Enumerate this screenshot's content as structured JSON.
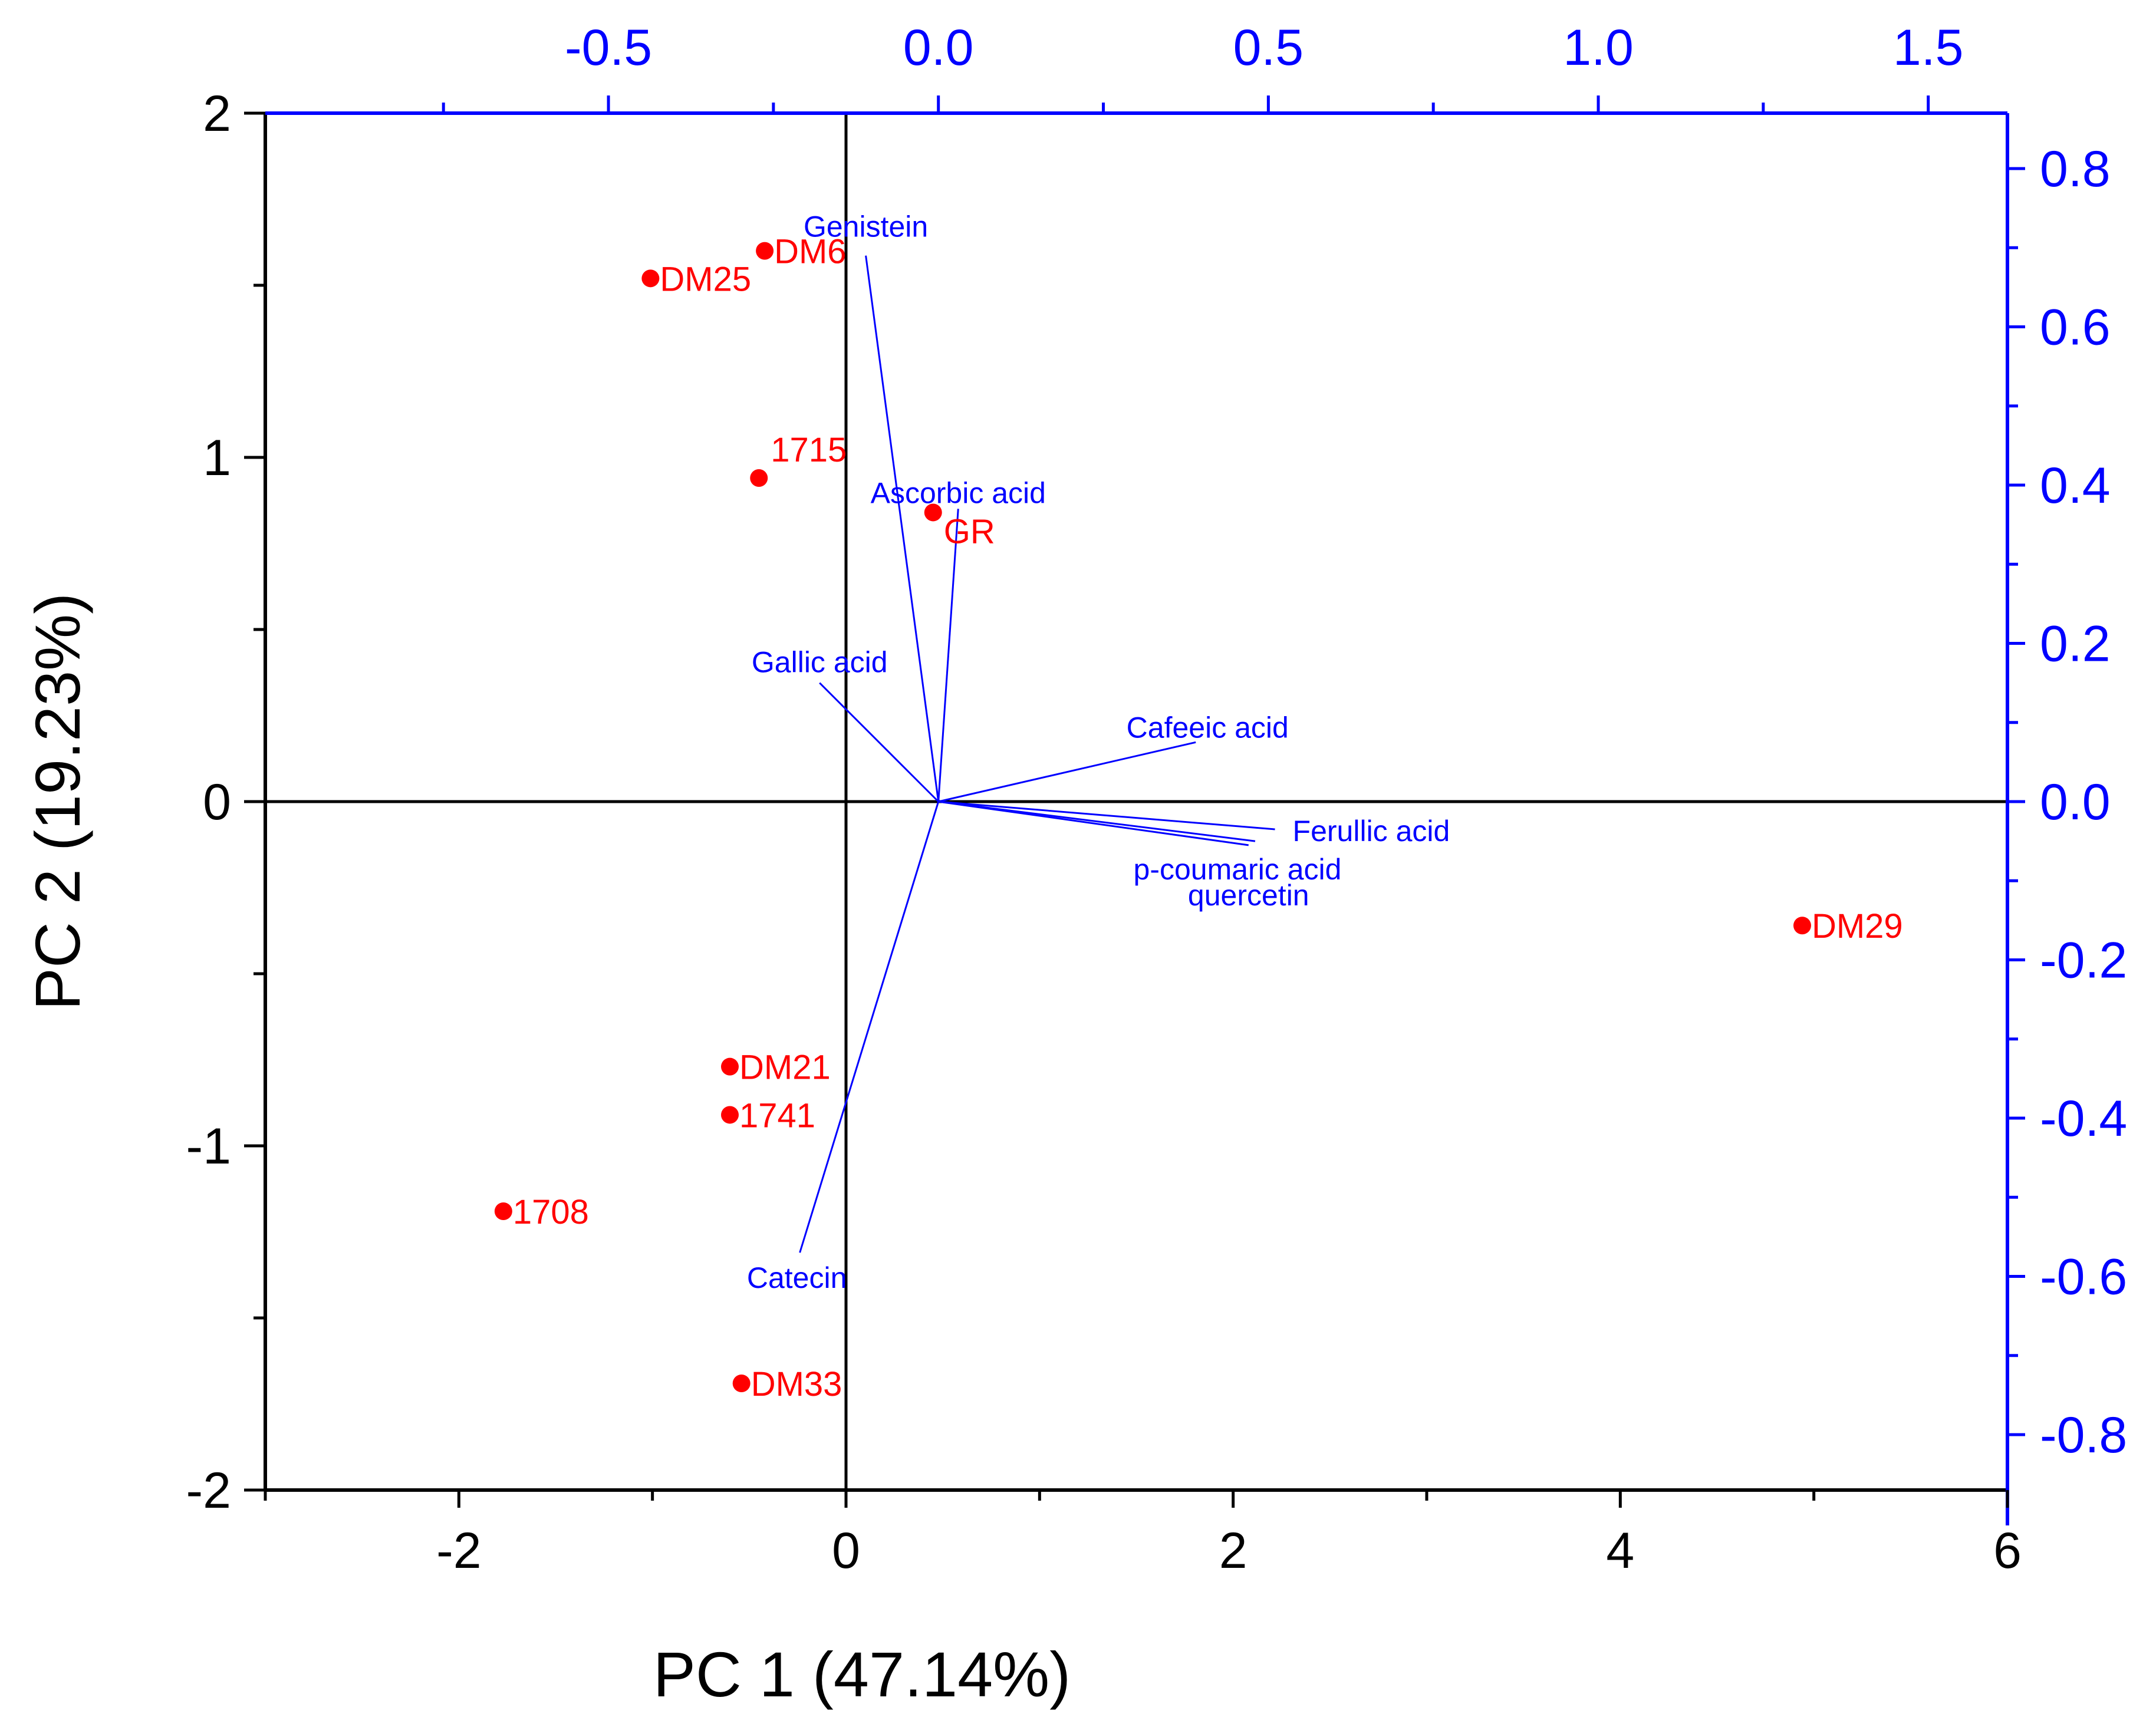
{
  "chart_data": {
    "type": "scatter",
    "title": "",
    "xlabel": "PC 1 (47.14%)",
    "ylabel": "PC 2 (19.23%)",
    "xlim": [
      -3,
      6
    ],
    "ylim": [
      -2,
      2
    ],
    "x_ticks": [
      -2,
      0,
      2,
      4,
      6
    ],
    "x_tick_labels": [
      "-2",
      "0",
      "2",
      "4",
      "6"
    ],
    "y_ticks": [
      -2,
      -1,
      0,
      1,
      2
    ],
    "y_tick_labels": [
      "-2",
      "-1",
      "0",
      "1",
      "2"
    ],
    "secondary_x": {
      "lim": [
        -1.02,
        1.62
      ],
      "ticks": [
        -0.5,
        0.0,
        0.5,
        1.0,
        1.5
      ],
      "tick_labels": [
        "-0.5",
        "0.0",
        "0.5",
        "1.0",
        "1.5"
      ]
    },
    "secondary_y": {
      "lim": [
        -0.87,
        0.87
      ],
      "ticks": [
        -0.8,
        -0.6,
        -0.4,
        -0.2,
        0.0,
        0.2,
        0.4,
        0.6,
        0.8
      ],
      "tick_labels": [
        "-0.8",
        "-0.6",
        "-0.4",
        "-0.2",
        "0.0",
        "0.2",
        "0.4",
        "0.6",
        "0.8"
      ]
    },
    "scores": [
      {
        "name": "DM6",
        "x": -0.42,
        "y": 1.6
      },
      {
        "name": "DM25",
        "x": -1.01,
        "y": 1.52
      },
      {
        "name": "1715",
        "x": -0.45,
        "y": 0.94
      },
      {
        "name": "GR",
        "x": 0.45,
        "y": 0.84
      },
      {
        "name": "DM29",
        "x": 4.94,
        "y": -0.36
      },
      {
        "name": "DM21",
        "x": -0.6,
        "y": -0.77
      },
      {
        "name": "1741",
        "x": -0.6,
        "y": -0.91
      },
      {
        "name": "1708",
        "x": -1.77,
        "y": -1.19
      },
      {
        "name": "DM33",
        "x": -0.54,
        "y": -1.69
      }
    ],
    "loadings": [
      {
        "name": "Genistein",
        "x": -0.11,
        "y": 0.69
      },
      {
        "name": "Ascorbic acid",
        "x": 0.03,
        "y": 0.37
      },
      {
        "name": "Gallic acid",
        "x": -0.18,
        "y": 0.15
      },
      {
        "name": "Cafeeic acid",
        "x": 0.39,
        "y": 0.075
      },
      {
        "name": "Ferullic acid",
        "x": 0.51,
        "y": -0.035
      },
      {
        "name": "p-coumaric acid",
        "x": 0.48,
        "y": -0.05
      },
      {
        "name": "quercetin",
        "x": 0.47,
        "y": -0.055
      },
      {
        "name": "Catecin",
        "x": -0.21,
        "y": -0.57
      }
    ],
    "colors": {
      "scores": "#ff0000",
      "loadings": "#0000ff",
      "primary_axes": "#000000",
      "secondary_axes": "#0000ff"
    }
  }
}
